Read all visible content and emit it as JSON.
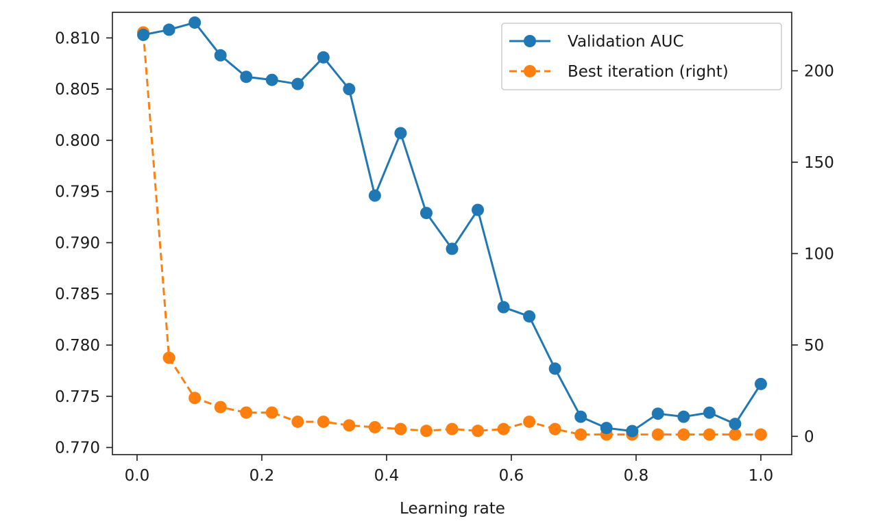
{
  "chart_data": {
    "type": "line",
    "title": "",
    "xlabel": "Learning rate",
    "ylabel_left": "",
    "ylabel_right": "",
    "xlim": [
      -0.0395,
      1.0495
    ],
    "ylim_left": [
      0.7693,
      0.8125
    ],
    "ylim_right": [
      -10,
      232
    ],
    "x_ticks": [
      0.0,
      0.2,
      0.4,
      0.6,
      0.8,
      1.0
    ],
    "x_tick_labels": [
      "0.0",
      "0.2",
      "0.4",
      "0.6",
      "0.8",
      "1.0"
    ],
    "y_left_ticks": [
      0.77,
      0.775,
      0.78,
      0.785,
      0.79,
      0.795,
      0.8,
      0.805,
      0.81
    ],
    "y_left_tick_labels": [
      "0.770",
      "0.775",
      "0.780",
      "0.785",
      "0.790",
      "0.795",
      "0.800",
      "0.805",
      "0.810"
    ],
    "y_right_ticks": [
      0,
      50,
      100,
      150,
      200
    ],
    "y_right_tick_labels": [
      "0",
      "50",
      "100",
      "150",
      "200"
    ],
    "grid": false,
    "legend_position": "top-right",
    "x": [
      0.01,
      0.05125,
      0.0925,
      0.13375,
      0.175,
      0.21625,
      0.2575,
      0.29875,
      0.34,
      0.38125,
      0.4225,
      0.46375,
      0.505,
      0.54625,
      0.5875,
      0.62875,
      0.67,
      0.71125,
      0.7525,
      0.79375,
      0.835,
      0.87625,
      0.9175,
      0.95875,
      1.0
    ],
    "series": [
      {
        "name": "Validation AUC",
        "axis": "left",
        "color": "#1f77b4",
        "linestyle": "solid",
        "marker": "circle",
        "values": [
          0.8103,
          0.8108,
          0.8115,
          0.8083,
          0.8062,
          0.8059,
          0.8055,
          0.8081,
          0.805,
          0.7946,
          0.8007,
          0.7929,
          0.7894,
          0.7932,
          0.7837,
          0.7828,
          0.7777,
          0.773,
          0.7719,
          0.7716,
          0.7733,
          0.773,
          0.7734,
          0.7723,
          0.7762
        ]
      },
      {
        "name": "Best iteration (right)",
        "axis": "right",
        "color": "#ff7f0e",
        "linestyle": "dashed",
        "marker": "circle",
        "values": [
          221,
          43,
          21,
          16,
          13,
          13,
          8,
          8,
          6,
          5,
          4,
          3,
          4,
          3,
          4,
          8,
          4,
          1,
          1,
          1,
          1,
          1,
          1,
          1,
          1
        ]
      }
    ]
  }
}
